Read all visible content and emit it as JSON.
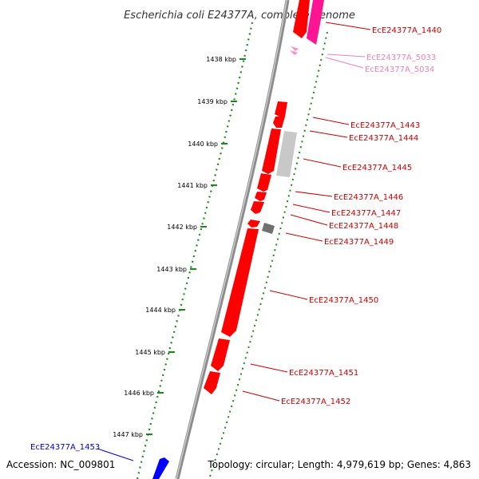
{
  "title": "Escherichia coli E24377A, complete genome",
  "accession_text": "Accession: NC_009801",
  "summary_text": "Topology: circular; Length: 4,979,619 bp; Genes: 4,863",
  "colors": {
    "backbone": "#8c8c8c",
    "tick_green": "#1a8a1a",
    "forward_gene": "#ff0000",
    "reverse_gene": "#ff0000",
    "pink_gene": "#ff1493",
    "light_pink": "#ff8cc8",
    "grey_gene": "#c8c8c8",
    "dark_grey_gene": "#707070",
    "blue_gene": "#0000ff",
    "label_red": "#cc0000",
    "label_pink": "#ee82b4",
    "label_blue": "#0000cc"
  },
  "scale": {
    "ticks": [
      {
        "kbp": 1438,
        "label": "1438 kbp"
      },
      {
        "kbp": 1439,
        "label": "1439 kbp"
      },
      {
        "kbp": 1440,
        "label": "1440 kbp"
      },
      {
        "kbp": 1441,
        "label": "1441 kbp"
      },
      {
        "kbp": 1442,
        "label": "1442 kbp"
      },
      {
        "kbp": 1443,
        "label": "1443 kbp"
      },
      {
        "kbp": 1444,
        "label": "1444 kbp"
      },
      {
        "kbp": 1445,
        "label": "1445 kbp"
      },
      {
        "kbp": 1446,
        "label": "1446 kbp"
      },
      {
        "kbp": 1447,
        "label": "1447 kbp"
      }
    ]
  },
  "gene_labels": [
    {
      "text": "EcE24377A_1440",
      "color_key": "label_red"
    },
    {
      "text": "EcE24377A_5033",
      "color_key": "label_pink"
    },
    {
      "text": "EcE24377A_5034",
      "color_key": "label_pink"
    },
    {
      "text": "EcE24377A_1443",
      "color_key": "label_red"
    },
    {
      "text": "EcE24377A_1444",
      "color_key": "label_red"
    },
    {
      "text": "EcE24377A_1445",
      "color_key": "label_red"
    },
    {
      "text": "EcE24377A_1446",
      "color_key": "label_red"
    },
    {
      "text": "EcE24377A_1447",
      "color_key": "label_red"
    },
    {
      "text": "EcE24377A_1448",
      "color_key": "label_red"
    },
    {
      "text": "EcE24377A_1449",
      "color_key": "label_red"
    },
    {
      "text": "EcE24377A_1450",
      "color_key": "label_red"
    },
    {
      "text": "EcE24377A_1451",
      "color_key": "label_red"
    },
    {
      "text": "EcE24377A_1452",
      "color_key": "label_red"
    },
    {
      "text": "EcE24377A_1453",
      "color_key": "label_blue"
    }
  ]
}
